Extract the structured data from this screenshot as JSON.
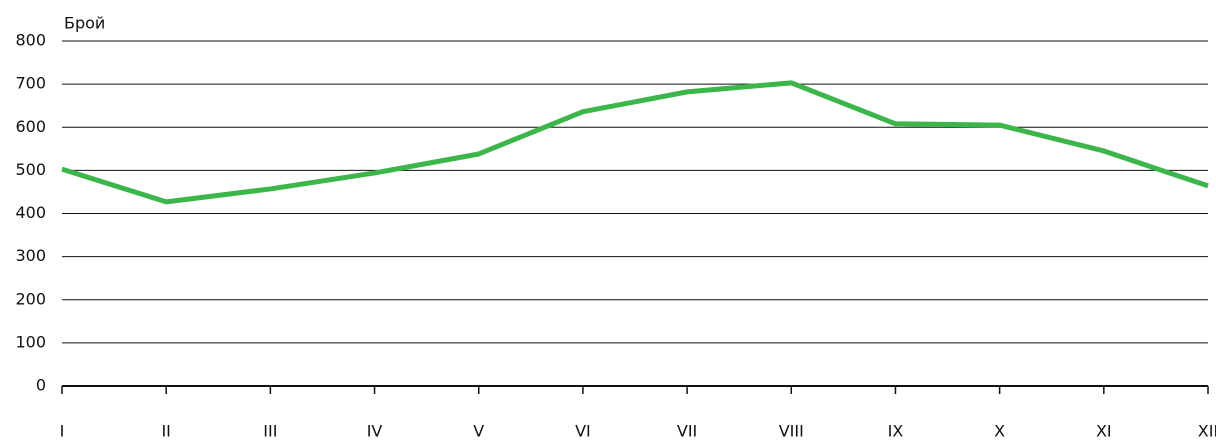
{
  "chart_data": {
    "type": "line",
    "y_label": "Брой",
    "categories": [
      "I",
      "II",
      "III",
      "IV",
      "V",
      "VI",
      "VII",
      "VIII",
      "IX",
      "X",
      "XI",
      "XII"
    ],
    "series": [
      {
        "color": "#3cb54a",
        "values": [
          503,
          427,
          457,
          494,
          538,
          636,
          682,
          703,
          608,
          605,
          545,
          464
        ]
      }
    ],
    "ylim": [
      0,
      800
    ],
    "yticks": [
      0,
      100,
      200,
      300,
      400,
      500,
      600,
      700,
      800
    ],
    "grid": true
  }
}
